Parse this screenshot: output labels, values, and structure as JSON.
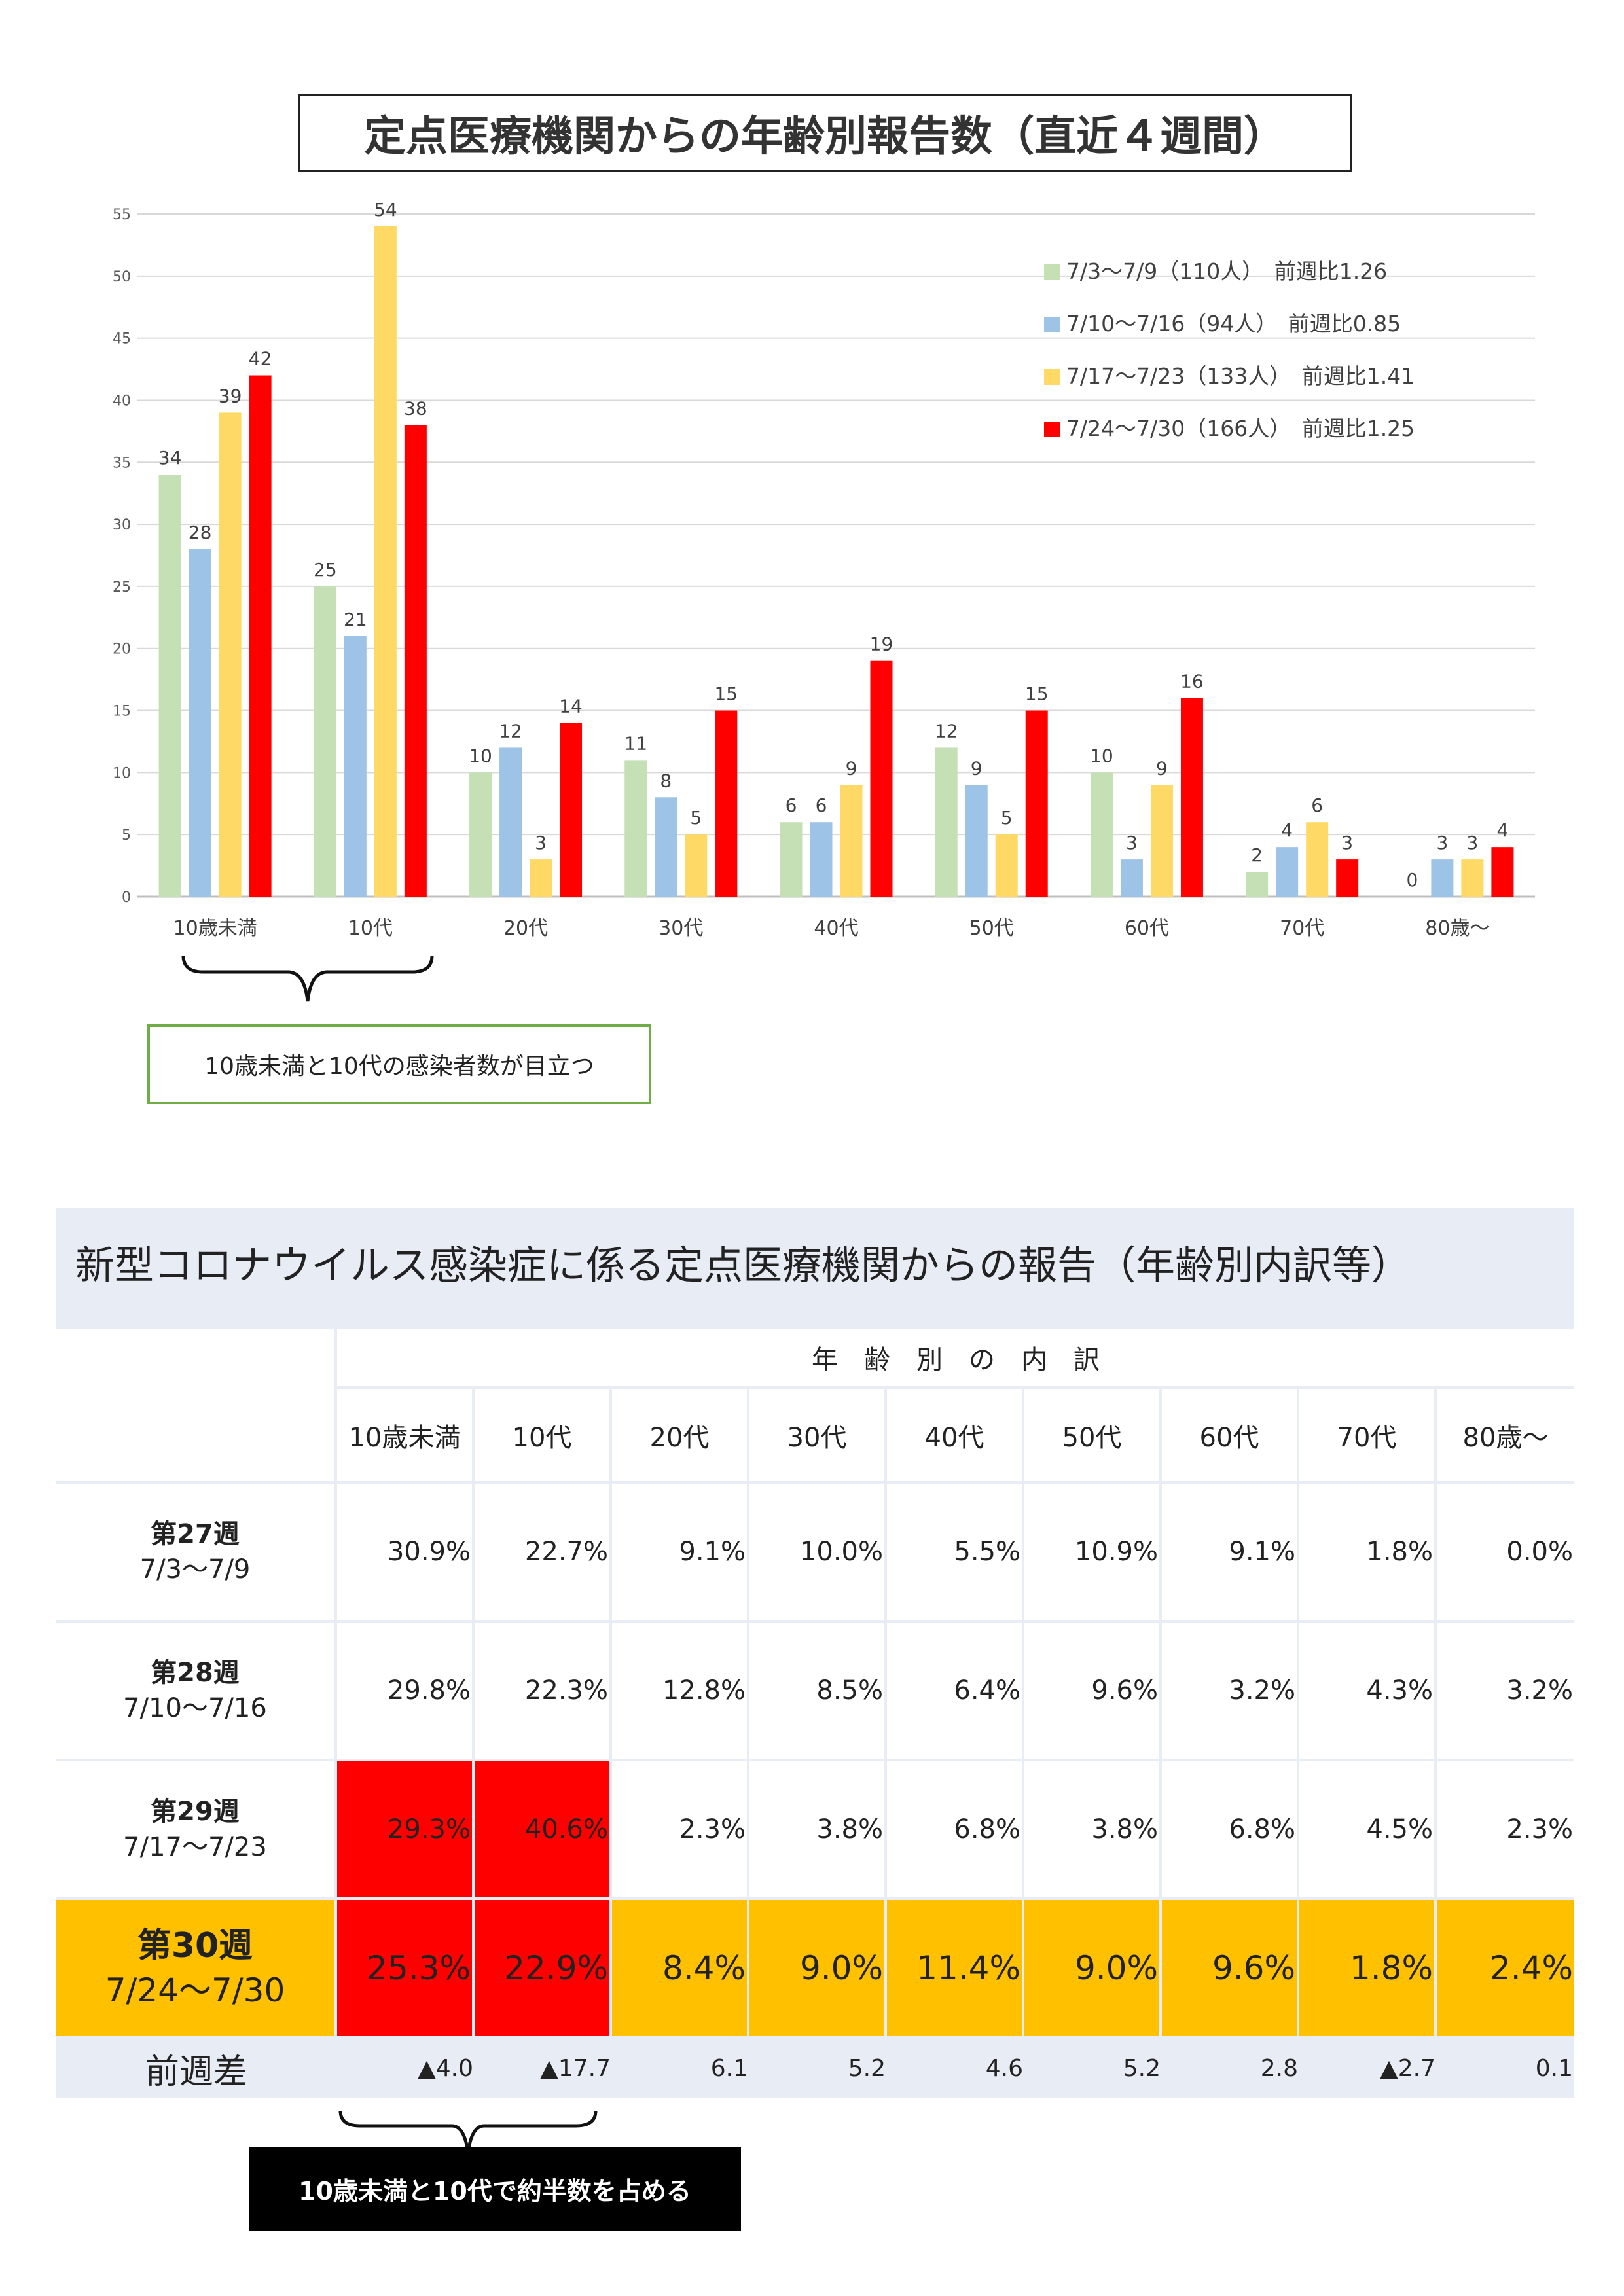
{
  "chart_title": "定点医療機関からの年齢別報告数（直近４週間）",
  "chart_data": {
    "type": "bar",
    "categories": [
      "10歳未満",
      "10代",
      "20代",
      "30代",
      "40代",
      "50代",
      "60代",
      "70代",
      "80歳〜"
    ],
    "ylim": [
      0,
      55
    ],
    "yticks": [
      0,
      5,
      10,
      15,
      20,
      25,
      30,
      35,
      40,
      45,
      50,
      55
    ],
    "grid": true,
    "legend_position": "top-right",
    "series": [
      {
        "name": "7/3〜7/9（110人）　前週比1.26",
        "color": "#c5e0b4",
        "values": [
          34,
          25,
          10,
          11,
          6,
          12,
          10,
          2,
          0
        ]
      },
      {
        "name": "7/10〜7/16（94人）　前週比0.85",
        "color": "#9dc3e6",
        "values": [
          28,
          21,
          12,
          8,
          6,
          9,
          3,
          4,
          3
        ]
      },
      {
        "name": "7/17〜7/23（133人）　前週比1.41",
        "color": "#ffd966",
        "values": [
          39,
          54,
          3,
          5,
          9,
          5,
          9,
          6,
          3
        ]
      },
      {
        "name": "7/24〜7/30（166人）　前週比1.25",
        "color": "#ff0000",
        "values": [
          42,
          38,
          14,
          15,
          19,
          15,
          16,
          3,
          4
        ]
      }
    ]
  },
  "note_chart": "10歳未満と10代の感染者数が目立つ",
  "table": {
    "title": "新型コロナウイルス感染症に係る定点医療機関からの報告（年齢別内訳等）",
    "group_header": "年　齢　別　の　内　訳",
    "columns": [
      "10歳未満",
      "10代",
      "20代",
      "30代",
      "40代",
      "50代",
      "60代",
      "70代",
      "80歳〜"
    ],
    "rows": [
      {
        "week": "第27週",
        "dates": "7/3〜7/9",
        "values": [
          "30.9%",
          "22.7%",
          "9.1%",
          "10.0%",
          "5.5%",
          "10.9%",
          "9.1%",
          "1.8%",
          "0.0%"
        ]
      },
      {
        "week": "第28週",
        "dates": "7/10〜7/16",
        "values": [
          "29.8%",
          "22.3%",
          "12.8%",
          "8.5%",
          "6.4%",
          "9.6%",
          "3.2%",
          "4.3%",
          "3.2%"
        ]
      },
      {
        "week": "第29週",
        "dates": "7/17〜7/23",
        "values": [
          "29.3%",
          "40.6%",
          "2.3%",
          "3.8%",
          "6.8%",
          "3.8%",
          "6.8%",
          "4.5%",
          "2.3%"
        ]
      },
      {
        "week": "第30週",
        "dates": "7/24〜7/30",
        "values": [
          "25.3%",
          "22.9%",
          "8.4%",
          "9.0%",
          "11.4%",
          "9.0%",
          "9.6%",
          "1.8%",
          "2.4%"
        ]
      }
    ],
    "diff_label": "前週差",
    "diff_values": [
      "▲4.0",
      "▲17.7",
      "6.1",
      "5.2",
      "4.6",
      "5.2",
      "2.8",
      "▲2.7",
      "0.1"
    ],
    "colors": {
      "highlight_red": "#ff0000",
      "highlight_orange": "#ffc000",
      "background": "#e8ecf5"
    }
  },
  "note_table": "10歳未満と10代で約半数を占める"
}
